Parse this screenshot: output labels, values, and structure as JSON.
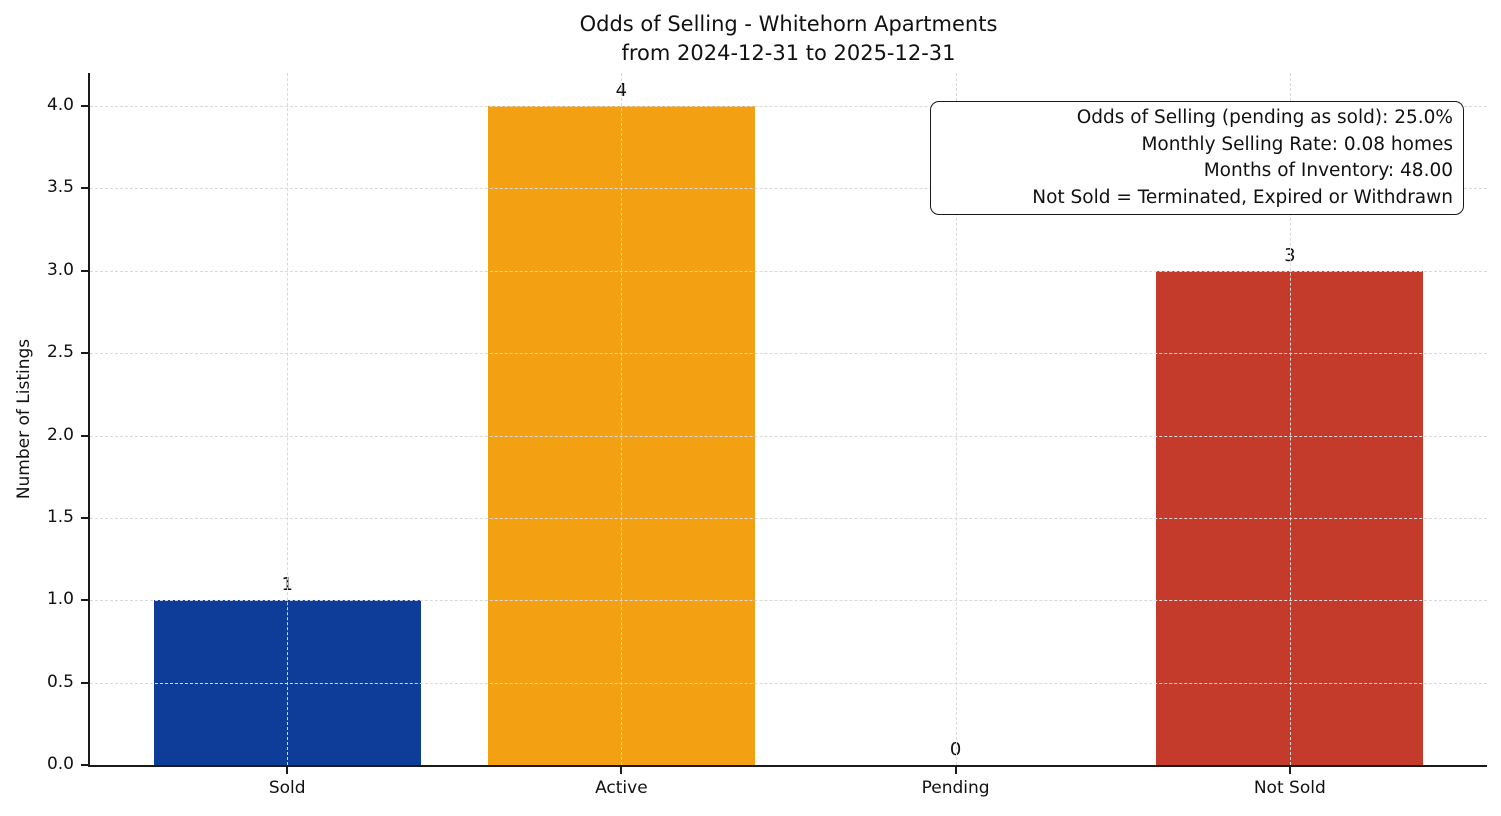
{
  "chart_data": {
    "type": "bar",
    "title": "Odds of Selling - Whitehorn Apartments",
    "subtitle": "from 2024-12-31 to 2025-12-31",
    "categories": [
      "Sold",
      "Active",
      "Pending",
      "Not Sold"
    ],
    "values": [
      1,
      4,
      0,
      3
    ],
    "bar_value_labels": [
      "1",
      "4",
      "0",
      "3"
    ],
    "bar_colors": [
      "#0d3d99",
      "#f3a113",
      null,
      "#c43b2c"
    ],
    "xlabel": "",
    "ylabel": "Number of Listings",
    "ylim": [
      0,
      4.2
    ],
    "yticks": [
      0,
      0.5,
      1,
      1.5,
      2,
      2.5,
      3,
      3.5,
      4
    ],
    "ytick_labels": [
      "0.0",
      "0.5",
      "1.0",
      "1.5",
      "2.0",
      "2.5",
      "3.0",
      "3.5",
      "4.0"
    ],
    "grid": "dashed-both-axes",
    "legend": "none",
    "annotation_lines": [
      "Odds of Selling (pending as sold): 25.0%",
      "Monthly Selling Rate: 0.08 homes",
      "Months of Inventory: 48.00",
      "Not Sold = Terminated, Expired or Withdrawn"
    ],
    "colors": {
      "grid": "#d9d9d9",
      "spine": "#1a1a1a",
      "text": "#000000",
      "background": "#ffffff"
    }
  }
}
